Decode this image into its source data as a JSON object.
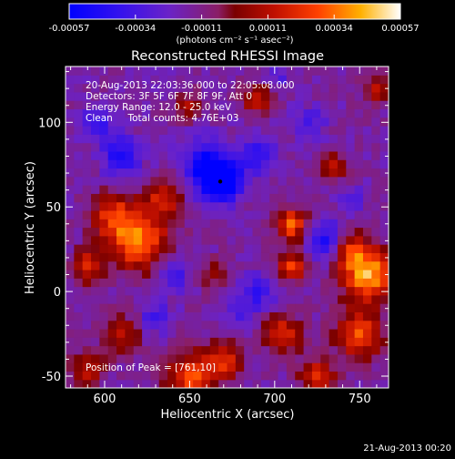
{
  "colorbar": {
    "tick_labels": [
      "-0.00057",
      "-0.00034",
      "-0.00011",
      "0.00011",
      "0.00034",
      "0.00057"
    ],
    "unit": "(photons cm⁻² s⁻¹ asec⁻²)",
    "min": -0.00057,
    "max": 0.00057,
    "colormap": "blue-purple-red-yellow-white"
  },
  "info": {
    "line1": "20-Aug-2013 22:03:36.000 to 22:05:08.000",
    "line2": "Detectors: 3F 5F 6F 7F 8F 9F, Att 0",
    "line3": "Energy Range: 12.0 - 25.0 keV",
    "line4": "Clean     Total counts: 4.76E+03",
    "peak": "Position of Peak = [761,10]"
  },
  "footer": {
    "timestamp": "21-Aug-2013 00:20"
  },
  "chart_data": {
    "type": "heatmap",
    "title": "Reconstructed RHESSI Image",
    "xlabel": "Heliocentric X (arcsec)",
    "ylabel": "Heliocentric Y (arcsec)",
    "xlim": [
      577,
      767
    ],
    "ylim": [
      -57,
      133
    ],
    "xticks": [
      600,
      650,
      700,
      750
    ],
    "yticks": [
      -50,
      0,
      50,
      100
    ],
    "xtick_labels": [
      "600",
      "650",
      "700",
      "750"
    ],
    "ytick_labels": [
      "-50",
      "0",
      "50",
      "100"
    ],
    "grid": false,
    "value_range": [
      -0.00057,
      0.00057
    ],
    "peak_position": [
      761,
      10
    ],
    "blobs": [
      {
        "x": 620,
        "y": 30,
        "value": 0.00045,
        "r": 18
      },
      {
        "x": 605,
        "y": 45,
        "value": 0.0003,
        "r": 14
      },
      {
        "x": 635,
        "y": 55,
        "value": 0.00028,
        "r": 12
      },
      {
        "x": 650,
        "y": -50,
        "value": 0.0004,
        "r": 14
      },
      {
        "x": 670,
        "y": -40,
        "value": 0.00032,
        "r": 12
      },
      {
        "x": 590,
        "y": 15,
        "value": 0.0003,
        "r": 10
      },
      {
        "x": 610,
        "y": -25,
        "value": 0.00022,
        "r": 12
      },
      {
        "x": 590,
        "y": -45,
        "value": 0.00025,
        "r": 10
      },
      {
        "x": 710,
        "y": 40,
        "value": 0.00042,
        "r": 10
      },
      {
        "x": 710,
        "y": 15,
        "value": 0.00035,
        "r": 9
      },
      {
        "x": 705,
        "y": -25,
        "value": 0.0003,
        "r": 12
      },
      {
        "x": 725,
        "y": -50,
        "value": 0.0003,
        "r": 11
      },
      {
        "x": 690,
        "y": 115,
        "value": 0.00028,
        "r": 10
      },
      {
        "x": 650,
        "y": 110,
        "value": 0.00018,
        "r": 9
      },
      {
        "x": 755,
        "y": 10,
        "value": 0.00055,
        "r": 16
      },
      {
        "x": 750,
        "y": -25,
        "value": 0.0004,
        "r": 14
      },
      {
        "x": 745,
        "y": 25,
        "value": 0.00032,
        "r": 10
      },
      {
        "x": 760,
        "y": 120,
        "value": 0.00022,
        "r": 9
      },
      {
        "x": 735,
        "y": 75,
        "value": 0.0002,
        "r": 9
      },
      {
        "x": 665,
        "y": 10,
        "value": 0.00016,
        "r": 9
      },
      {
        "x": 668,
        "y": 65,
        "value": -0.00057,
        "r": 12
      },
      {
        "x": 660,
        "y": 75,
        "value": -0.00035,
        "r": 15
      },
      {
        "x": 610,
        "y": 80,
        "value": -0.0003,
        "r": 12
      },
      {
        "x": 690,
        "y": 80,
        "value": -0.00028,
        "r": 11
      },
      {
        "x": 595,
        "y": 100,
        "value": -0.00025,
        "r": 10
      },
      {
        "x": 730,
        "y": 30,
        "value": -0.0003,
        "r": 12
      },
      {
        "x": 690,
        "y": 0,
        "value": -0.00022,
        "r": 11
      },
      {
        "x": 640,
        "y": 10,
        "value": -0.00022,
        "r": 10
      },
      {
        "x": 720,
        "y": 100,
        "value": -0.00018,
        "r": 10
      },
      {
        "x": 630,
        "y": -15,
        "value": -0.0002,
        "r": 10
      },
      {
        "x": 680,
        "y": -15,
        "value": -0.00015,
        "r": 9
      },
      {
        "x": 700,
        "y": 125,
        "value": -0.00015,
        "r": 9
      },
      {
        "x": 745,
        "y": 55,
        "value": -0.00015,
        "r": 8
      }
    ]
  }
}
